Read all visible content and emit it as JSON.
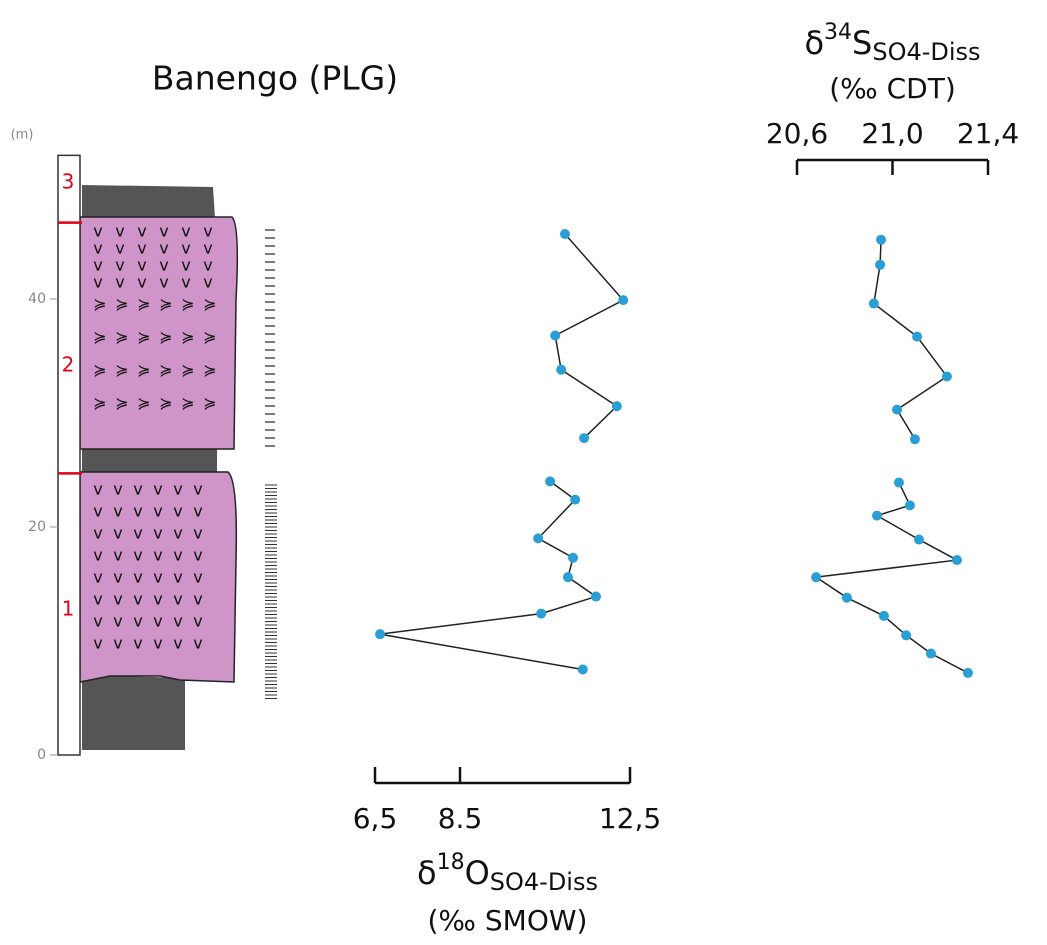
{
  "chart_data": [
    {
      "type": "column",
      "title": "Banengo (PLG)",
      "ylabel": "(m)",
      "ylim": [
        0,
        52.6
      ],
      "yticks": [
        0,
        20,
        40
      ],
      "units": [
        "1",
        "2",
        "3"
      ],
      "boundaries": [
        24.7,
        46.7
      ],
      "boundary_color": "#e0001a"
    },
    {
      "type": "line",
      "color": "#2a9fd6",
      "axis_side": "bottom",
      "xlabel": {
        "symbol": "δ",
        "isotope": "18",
        "element": "O",
        "subscript": "SO4-Diss",
        "unit": "(‰ SMOW)"
      },
      "xlim": [
        6.5,
        12.5
      ],
      "xticks": [
        {
          "value": 6.5,
          "label": "6,5"
        },
        8.5,
        {
          "value": 12.5,
          "label": "12,5"
        }
      ],
      "ylim": [
        0,
        52.6
      ],
      "values": [
        10.97,
        12.34,
        10.74,
        10.88,
        12.19,
        11.42,
        null,
        10.62,
        11.21,
        10.34,
        11.16,
        11.04,
        11.7,
        10.41,
        6.62,
        11.39
      ],
      "heights": [
        45.7,
        39.9,
        36.8,
        33.8,
        30.6,
        27.8,
        null,
        24.0,
        22.4,
        19.0,
        17.3,
        15.6,
        13.9,
        12.4,
        10.6,
        7.5
      ]
    },
    {
      "type": "line",
      "color": "#2a9fd6",
      "axis_side": "top",
      "xlabel": {
        "symbol": "δ",
        "isotope": "34",
        "element": "S",
        "subscript": "SO4-Diss",
        "unit": "(‰ CDT)"
      },
      "xlim": [
        20.6,
        21.4
      ],
      "xticks": [
        {
          "value": 20.6,
          "label": "20,6"
        },
        {
          "value": 21.0,
          "label": "21,0"
        },
        {
          "value": 21.4,
          "label": "21,4"
        }
      ],
      "ylim": [
        0,
        52.6
      ],
      "values": [
        20.952,
        20.948,
        20.922,
        21.103,
        21.228,
        21.019,
        21.094,
        null,
        21.027,
        21.073,
        20.935,
        21.111,
        21.27,
        20.68,
        20.809,
        20.964,
        21.057,
        21.161,
        21.316
      ],
      "heights": [
        45.2,
        43.0,
        39.6,
        36.7,
        33.2,
        30.3,
        27.7,
        null,
        23.9,
        21.9,
        21.0,
        18.9,
        17.1,
        15.6,
        13.8,
        12.2,
        10.5,
        8.9,
        7.2
      ]
    }
  ]
}
